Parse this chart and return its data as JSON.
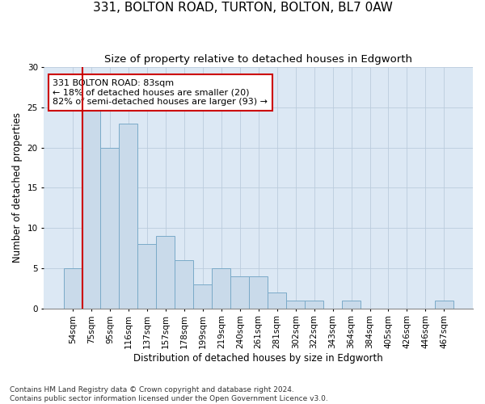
{
  "title1": "331, BOLTON ROAD, TURTON, BOLTON, BL7 0AW",
  "title2": "Size of property relative to detached houses in Edgworth",
  "xlabel": "Distribution of detached houses by size in Edgworth",
  "ylabel": "Number of detached properties",
  "bar_labels": [
    "54sqm",
    "75sqm",
    "95sqm",
    "116sqm",
    "137sqm",
    "157sqm",
    "178sqm",
    "199sqm",
    "219sqm",
    "240sqm",
    "261sqm",
    "281sqm",
    "302sqm",
    "322sqm",
    "343sqm",
    "364sqm",
    "384sqm",
    "405sqm",
    "426sqm",
    "446sqm",
    "467sqm"
  ],
  "bar_values": [
    5,
    25,
    20,
    23,
    8,
    9,
    6,
    3,
    5,
    4,
    4,
    2,
    1,
    1,
    0,
    1,
    0,
    0,
    0,
    0,
    1
  ],
  "bar_color": "#c9daea",
  "bar_edge_color": "#7aaac8",
  "vline_x": 0.5,
  "vline_color": "#cc0000",
  "annotation_text": "331 BOLTON ROAD: 83sqm\n← 18% of detached houses are smaller (20)\n82% of semi-detached houses are larger (93) →",
  "annotation_box_color": "#ffffff",
  "annotation_box_edge": "#cc0000",
  "ylim": [
    0,
    30
  ],
  "yticks": [
    0,
    5,
    10,
    15,
    20,
    25,
    30
  ],
  "grid_color": "#bbccdd",
  "bg_color": "#dce8f4",
  "footnote": "Contains HM Land Registry data © Crown copyright and database right 2024.\nContains public sector information licensed under the Open Government Licence v3.0.",
  "title1_fontsize": 11,
  "title2_fontsize": 9.5,
  "axis_label_fontsize": 8.5,
  "tick_fontsize": 7.5,
  "annotation_fontsize": 8,
  "footnote_fontsize": 6.5
}
